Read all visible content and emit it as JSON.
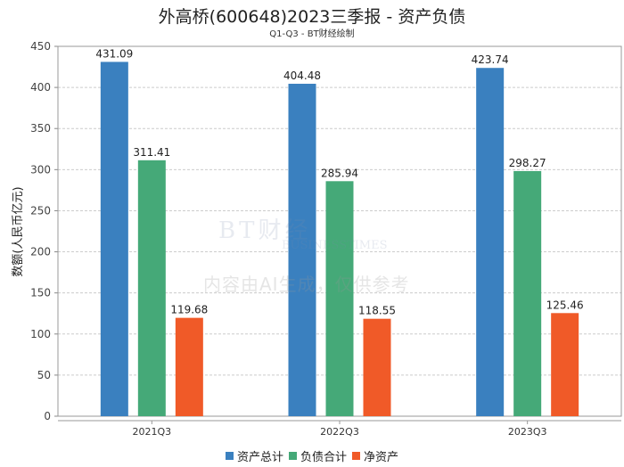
{
  "chart_data": {
    "type": "bar",
    "title": "外高桥(600648)2023三季报 - 资产负债",
    "subtitle": "Q1-Q3 - BT财经绘制",
    "ylabel": "数额(人民币亿元)",
    "xlabel": "",
    "ylim": [
      0,
      450
    ],
    "yticks": [
      0,
      50,
      100,
      150,
      200,
      250,
      300,
      350,
      400,
      450
    ],
    "grid": true,
    "legend_position": "bottom",
    "categories": [
      "2021Q3",
      "2022Q3",
      "2023Q3"
    ],
    "series": [
      {
        "name": "资产总计",
        "color": "#3a80bf",
        "values": [
          431.09,
          404.48,
          423.74
        ]
      },
      {
        "name": "负债合计",
        "color": "#45a978",
        "values": [
          311.41,
          285.94,
          298.27
        ]
      },
      {
        "name": "净资产",
        "color": "#f05a28",
        "values": [
          119.68,
          118.55,
          125.46
        ]
      }
    ]
  },
  "watermark": {
    "brand": "BT财经",
    "brand_en": "BUSINESSTIMES",
    "notice": "内容由AI生成，仅供参考"
  }
}
